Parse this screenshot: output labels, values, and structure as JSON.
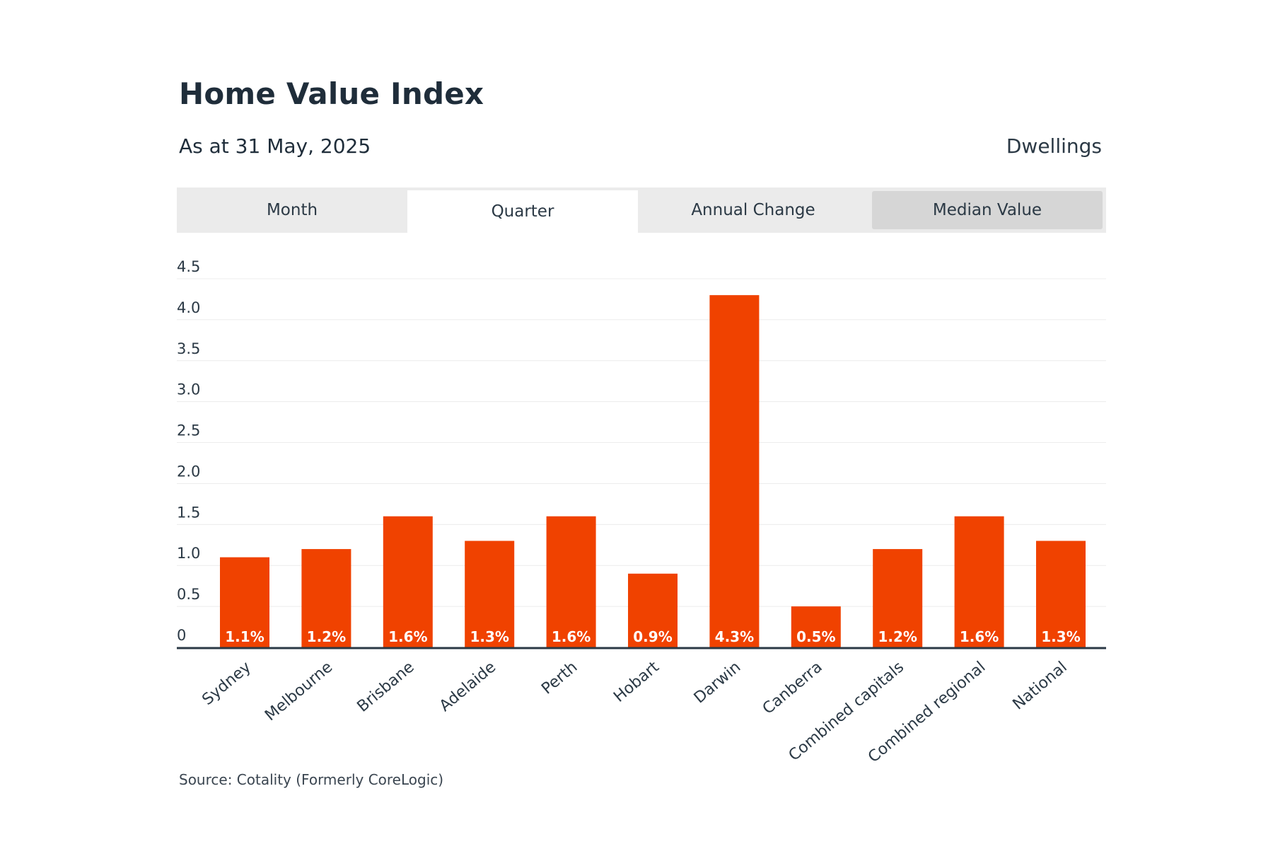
{
  "header": {
    "title": "Home Value Index",
    "subtitle": "As at 31 May, 2025",
    "measure": "Dwellings"
  },
  "tabs": [
    {
      "label": "Month"
    },
    {
      "label": "Quarter"
    },
    {
      "label": "Annual Change"
    },
    {
      "label": "Median Value"
    }
  ],
  "footer": {
    "source": "Source: Cotality (Formerly CoreLogic)"
  },
  "chart_data": {
    "type": "bar",
    "title": "",
    "xlabel": "",
    "ylabel": "",
    "ylim": [
      0,
      4.5
    ],
    "yticks": [
      "0",
      "0.5",
      "1.0",
      "1.5",
      "2.0",
      "2.5",
      "3.0",
      "3.5",
      "4.0",
      "4.5"
    ],
    "ytick_values": [
      0,
      0.5,
      1.0,
      1.5,
      2.0,
      2.5,
      3.0,
      3.5,
      4.0,
      4.5
    ],
    "categories": [
      "Sydney",
      "Melbourne",
      "Brisbane",
      "Adelaide",
      "Perth",
      "Hobart",
      "Darwin",
      "Canberra",
      "Combined capitals",
      "Combined regional",
      "National"
    ],
    "values": [
      1.1,
      1.2,
      1.6,
      1.3,
      1.6,
      0.9,
      4.3,
      0.5,
      1.2,
      1.6,
      1.3
    ],
    "labels": [
      "1.1%",
      "1.2%",
      "1.6%",
      "1.3%",
      "1.6%",
      "0.9%",
      "4.3%",
      "0.5%",
      "1.2%",
      "1.6%",
      "1.3%"
    ],
    "grid": true,
    "bar_color": "#f04200",
    "gridline_color": "#ececec",
    "axis_color": "#2b3945"
  }
}
